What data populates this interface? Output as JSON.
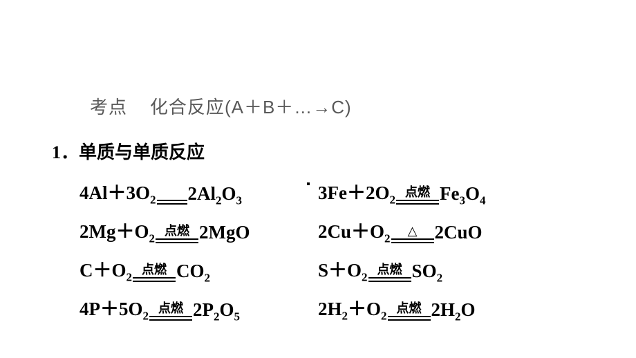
{
  "title": {
    "prefix": "考点",
    "text": "化合反应",
    "formula": "(A＋B＋…→C)"
  },
  "section": "1．单质与单质反应",
  "conditions": {
    "ignite": "点燃",
    "heat": "△"
  },
  "equations": [
    [
      {
        "lhs": [
          {
            "c": "4",
            "t": "Al"
          },
          {
            "op": "+"
          },
          {
            "c": "3",
            "t": "O",
            "s": "2"
          }
        ],
        "cond": null,
        "rhs": [
          {
            "c": "2",
            "t": "Al",
            "s": "2"
          },
          {
            "t": "O",
            "s": "3"
          }
        ],
        "eqlen": "short"
      },
      {
        "lhs": [
          {
            "c": "3",
            "t": "Fe"
          },
          {
            "op": "+"
          },
          {
            "c": "2",
            "t": "O",
            "s": "2"
          }
        ],
        "cond": "ignite",
        "rhs": [
          {
            "t": "Fe",
            "s": "3"
          },
          {
            "t": "O",
            "s": "4"
          }
        ],
        "eqlen": "long"
      }
    ],
    [
      {
        "lhs": [
          {
            "c": "2",
            "t": "Mg"
          },
          {
            "op": "+"
          },
          {
            "t": "O",
            "s": "2"
          }
        ],
        "cond": "ignite",
        "rhs": [
          {
            "c": "2",
            "t": "MgO"
          }
        ],
        "eqlen": "long"
      },
      {
        "lhs": [
          {
            "c": "2",
            "t": "Cu"
          },
          {
            "op": "+"
          },
          {
            "t": "O",
            "s": "2"
          }
        ],
        "cond": "heat",
        "rhs": [
          {
            "c": "2",
            "t": "CuO"
          }
        ],
        "eqlen": "long"
      }
    ],
    [
      {
        "lhs": [
          {
            "t": "C"
          },
          {
            "op": "+"
          },
          {
            "t": "O",
            "s": "2"
          }
        ],
        "cond": "ignite",
        "rhs": [
          {
            "t": "CO",
            "s": "2"
          }
        ],
        "eqlen": "long"
      },
      {
        "lhs": [
          {
            "t": "S"
          },
          {
            "op": "+"
          },
          {
            "t": "O",
            "s": "2"
          }
        ],
        "cond": "ignite",
        "rhs": [
          {
            "t": "SO",
            "s": "2"
          }
        ],
        "eqlen": "long"
      }
    ],
    [
      {
        "lhs": [
          {
            "c": "4",
            "t": "P"
          },
          {
            "op": "+"
          },
          {
            "c": "5",
            "t": "O",
            "s": "2"
          }
        ],
        "cond": "ignite",
        "rhs": [
          {
            "c": "2",
            "t": "P",
            "s": "2"
          },
          {
            "t": "O",
            "s": "5"
          }
        ],
        "eqlen": "long"
      },
      {
        "lhs": [
          {
            "c": "2",
            "t": "H",
            "s": "2"
          },
          {
            "op": "+"
          },
          {
            "t": "O",
            "s": "2"
          }
        ],
        "cond": "ignite",
        "rhs": [
          {
            "c": "2",
            "t": "H",
            "s": "2"
          },
          {
            "t": "O"
          }
        ],
        "eqlen": "long"
      }
    ]
  ]
}
